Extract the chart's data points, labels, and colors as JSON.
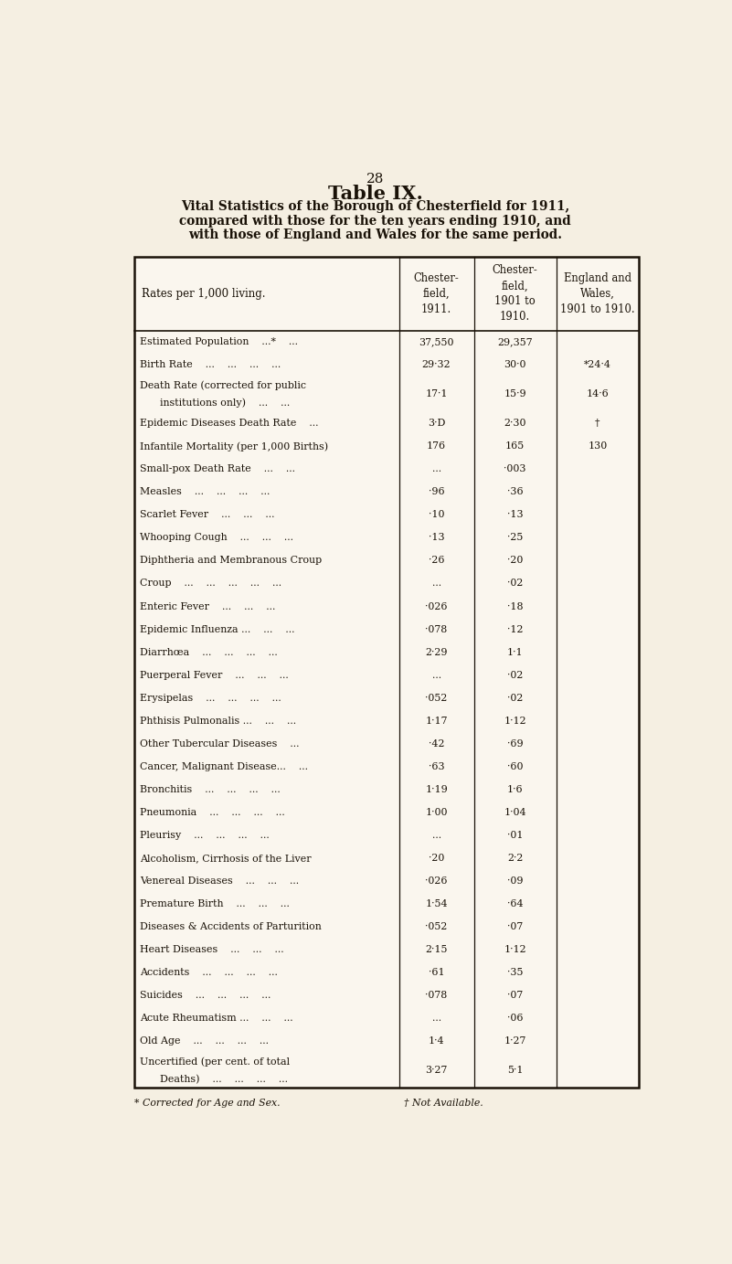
{
  "page_number": "28",
  "title": "Table IX.",
  "subtitle_lines": [
    "Vital Statistics of the Borough of Chesterfield for 1911,",
    "compared with those for the ten years ending 1910, and",
    "with those of England and Wales for the same period."
  ],
  "col_headers_line1": [
    "Rates per 1,000 living.",
    "Chester-",
    "Chester-",
    "England and"
  ],
  "col_headers_line2": [
    "",
    "field,",
    "field,",
    "Wales,"
  ],
  "col_headers_line3": [
    "",
    "1911.",
    "1901 to",
    "1901 to 1910."
  ],
  "col_headers_line4": [
    "",
    "",
    "1910.",
    ""
  ],
  "rows": [
    {
      "label": "Estimated Population    ...*    ...",
      "label2": null,
      "c1": "37,550",
      "c2": "29,357",
      "c3": ""
    },
    {
      "label": "Birth Rate    ...    ...    ...    ...",
      "label2": null,
      "c1": "29·32",
      "c2": "30·0",
      "c3": "*24·4"
    },
    {
      "label": "Death Rate (corrected for public",
      "label2": "    institutions only)    ...    ...",
      "c1": "17·1",
      "c2": "15·9",
      "c3": "14·6"
    },
    {
      "label": "Epidemic Diseases Death Rate    ...",
      "label2": null,
      "c1": "3·D",
      "c2": "2·30",
      "c3": "†"
    },
    {
      "label": "Infantile Mortality (per 1,000 Births)",
      "label2": null,
      "c1": "176",
      "c2": "165",
      "c3": "130"
    },
    {
      "label": "Small-pox Death Rate    ...    ...",
      "label2": null,
      "c1": "...",
      "c2": "·003",
      "c3": ""
    },
    {
      "label": "Measles    ...    ...    ...    ...",
      "label2": null,
      "c1": "·96",
      "c2": "·36",
      "c3": ""
    },
    {
      "label": "Scarlet Fever    ...    ...    ...",
      "label2": null,
      "c1": "·10",
      "c2": "·13",
      "c3": ""
    },
    {
      "label": "Whooping Cough    ...    ...    ...",
      "label2": null,
      "c1": "·13",
      "c2": "·25",
      "c3": ""
    },
    {
      "label": "Diphtheria and Membranous Croup",
      "label2": null,
      "c1": "·26",
      "c2": "·20",
      "c3": ""
    },
    {
      "label": "Croup    ...    ...    ...    ...    ...",
      "label2": null,
      "c1": "...",
      "c2": "·02",
      "c3": ""
    },
    {
      "label": "Enteric Fever    ...    ...    ...",
      "label2": null,
      "c1": "·026",
      "c2": "·18",
      "c3": ""
    },
    {
      "label": "Epidemic Influenza ...    ...    ...",
      "label2": null,
      "c1": "·078",
      "c2": "·12",
      "c3": ""
    },
    {
      "label": "Diarrhœa    ...    ...    ...    ...",
      "label2": null,
      "c1": "2·29",
      "c2": "1·1",
      "c3": ""
    },
    {
      "label": "Puerperal Fever    ...    ...    ...",
      "label2": null,
      "c1": "...",
      "c2": "·02",
      "c3": ""
    },
    {
      "label": "Erysipelas    ...    ...    ...    ...",
      "label2": null,
      "c1": "·052",
      "c2": "·02",
      "c3": ""
    },
    {
      "label": "Phthisis Pulmonalis ...    ...    ...",
      "label2": null,
      "c1": "1·17",
      "c2": "1·12",
      "c3": ""
    },
    {
      "label": "Other Tubercular Diseases    ...",
      "label2": null,
      "c1": "·42",
      "c2": "·69",
      "c3": ""
    },
    {
      "label": "Cancer, Malignant Disease...    ...",
      "label2": null,
      "c1": "·63",
      "c2": "·60",
      "c3": ""
    },
    {
      "label": "Bronchitis    ...    ...    ...    ...",
      "label2": null,
      "c1": "1·19",
      "c2": "1·6",
      "c3": ""
    },
    {
      "label": "Pneumonia    ...    ...    ...    ...",
      "label2": null,
      "c1": "1·00",
      "c2": "1·04",
      "c3": ""
    },
    {
      "label": "Pleurisy    ...    ...    ...    ...",
      "label2": null,
      "c1": "...",
      "c2": "·01",
      "c3": ""
    },
    {
      "label": "Alcoholism, Cirrhosis of the Liver",
      "label2": null,
      "c1": "·20",
      "c2": "2·2",
      "c3": ""
    },
    {
      "label": "Venereal Diseases    ...    ...    ...",
      "label2": null,
      "c1": "·026",
      "c2": "·09",
      "c3": ""
    },
    {
      "label": "Premature Birth    ...    ...    ...",
      "label2": null,
      "c1": "1·54",
      "c2": "·64",
      "c3": ""
    },
    {
      "label": "Diseases & Accidents of Parturition",
      "label2": null,
      "c1": "·052",
      "c2": "·07",
      "c3": ""
    },
    {
      "label": "Heart Diseases    ...    ...    ...",
      "label2": null,
      "c1": "2·15",
      "c2": "1·12",
      "c3": ""
    },
    {
      "label": "Accidents    ...    ...    ...    ...",
      "label2": null,
      "c1": "·61",
      "c2": "·35",
      "c3": ""
    },
    {
      "label": "Suicides    ...    ...    ...    ...",
      "label2": null,
      "c1": "·078",
      "c2": "·07",
      "c3": ""
    },
    {
      "label": "Acute Rheumatism ...    ...    ...",
      "label2": null,
      "c1": "...",
      "c2": "·06",
      "c3": ""
    },
    {
      "label": "Old Age    ...    ...    ...    ...",
      "label2": null,
      "c1": "1·4",
      "c2": "1·27",
      "c3": ""
    },
    {
      "label": "Uncertified (per cent. of total",
      "label2": "    Deaths)    ...    ...    ...    ...",
      "c1": "3·27",
      "c2": "5·1",
      "c3": ""
    }
  ],
  "footnote1": "* Corrected for Age and Sex.",
  "footnote2": "† Not Available.",
  "bg_color": "#f5efe2",
  "table_bg": "#faf6ee",
  "text_color": "#1a1208",
  "border_color": "#1a1208"
}
